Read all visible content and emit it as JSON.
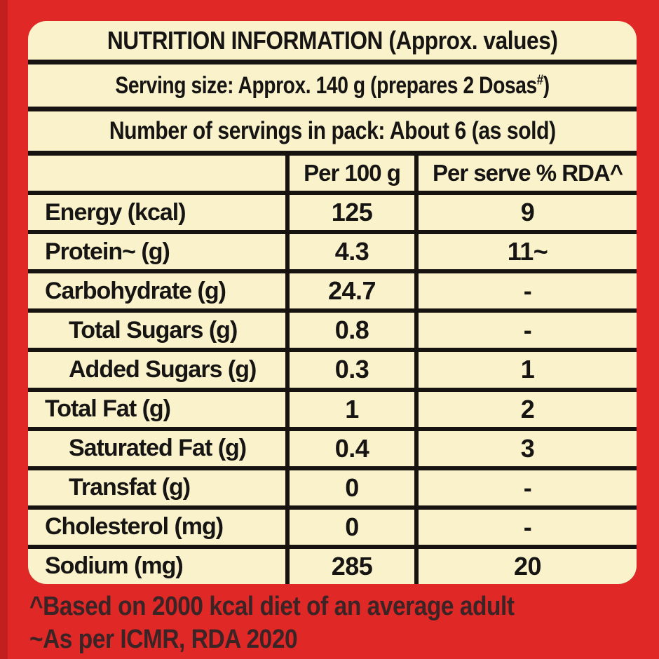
{
  "colors": {
    "background_red": "#E02826",
    "edge_red": "#C2201F",
    "panel_cream": "#F9F2CB",
    "line_black": "#171310",
    "text_black": "#171513",
    "footnote_text": "#3A2426"
  },
  "header": {
    "title": "NUTRITION INFORMATION (Approx. values)",
    "serving_size": {
      "prefix": "Serving size: Approx. 140 g (prepares 2 Dosas",
      "sup": "#",
      "suffix": ")"
    },
    "servings_in_pack": "Number of servings in pack: About 6 (as sold)"
  },
  "table": {
    "columns": [
      "",
      "Per 100 g",
      "Per serve % RDA^"
    ],
    "rows": [
      {
        "label": "Energy (kcal)",
        "per_100g": "125",
        "per_serve_rda": "9",
        "indent": false
      },
      {
        "label": "Protein~ (g)",
        "per_100g": "4.3",
        "per_serve_rda": "11~",
        "indent": false
      },
      {
        "label": "Carbohydrate (g)",
        "per_100g": "24.7",
        "per_serve_rda": "-",
        "indent": false
      },
      {
        "label": "Total Sugars (g)",
        "per_100g": "0.8",
        "per_serve_rda": "-",
        "indent": true
      },
      {
        "label": "Added Sugars (g)",
        "per_100g": "0.3",
        "per_serve_rda": "1",
        "indent": true
      },
      {
        "label": "Total Fat (g)",
        "per_100g": "1",
        "per_serve_rda": "2",
        "indent": false
      },
      {
        "label": "Saturated Fat (g)",
        "per_100g": "0.4",
        "per_serve_rda": "3",
        "indent": true
      },
      {
        "label": "Transfat (g)",
        "per_100g": "0",
        "per_serve_rda": "-",
        "indent": true
      },
      {
        "label": "Cholesterol (mg)",
        "per_100g": "0",
        "per_serve_rda": "-",
        "indent": false
      },
      {
        "label": "Sodium (mg)",
        "per_100g": "285",
        "per_serve_rda": "20",
        "indent": false
      }
    ]
  },
  "footnotes": [
    "^Based on 2000 kcal diet of an average adult",
    "~As per ICMR, RDA 2020"
  ]
}
